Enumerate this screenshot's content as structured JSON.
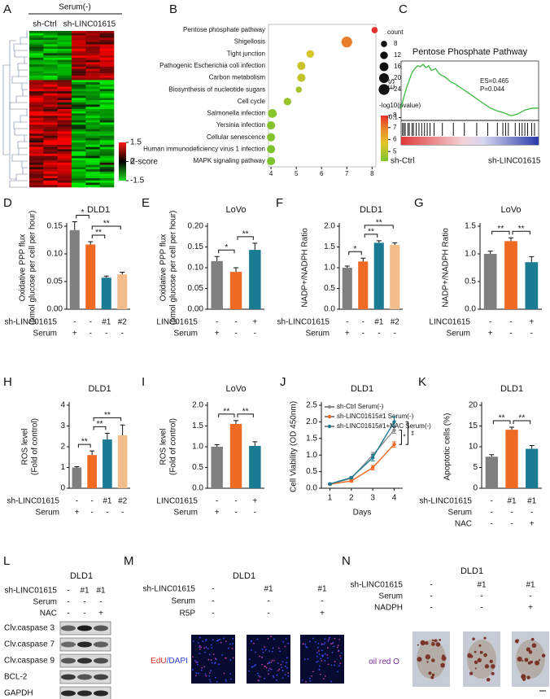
{
  "heatmap": {
    "label": "A",
    "group": "Serum(-)",
    "columns": [
      "sh-Ctrl",
      "sh-LINC01615"
    ],
    "colorbar_ticks": [
      1.5,
      0,
      -1.5
    ],
    "colorbar_label": "Z-score"
  },
  "chart_data": [
    {
      "type": "bubble",
      "label": "B",
      "categories": [
        "Pentose phosphate pathway",
        "Shigellosis",
        "Tight junction",
        "Pathogenic Escherichia coli infection",
        "Carbon metabolism",
        "Biosynthesis of nucleotide sugars",
        "Cell cycle",
        "Salmonella infection",
        "Yersinia infection",
        "Cellular senescence",
        "Human immunodeficiency virus 1 infection",
        "MAPK signaling pathway"
      ],
      "values": [
        8.1,
        7.0,
        5.55,
        5.2,
        5.2,
        5.1,
        4.65,
        4.05,
        4.0,
        4.0,
        4.0,
        4.0
      ],
      "counts": [
        8,
        24,
        12,
        14,
        14,
        8,
        12,
        16,
        14,
        14,
        14,
        14
      ],
      "pvalues": [
        8,
        7,
        5.5,
        5.3,
        5.2,
        4.8,
        4.6,
        4.4,
        4.3,
        4.3,
        4.2,
        4.1
      ],
      "xlim": [
        3.9,
        8.15
      ],
      "xticks": [
        4,
        5,
        6,
        7,
        8
      ],
      "size_title": "count",
      "size_legend": [
        8,
        12,
        16,
        20,
        24
      ],
      "color_title": "-log10(pvalue)",
      "color_lim": [
        4.2,
        8
      ],
      "color_ticks": [
        8,
        7,
        6,
        5
      ]
    },
    {
      "type": "enrichment",
      "label": "C",
      "title": "Pentose Phosphate Pathway",
      "ylabel": "ES",
      "x": [
        0,
        2,
        4,
        6,
        8,
        10,
        12,
        14,
        16,
        18,
        20,
        22,
        25,
        28,
        32,
        36,
        40,
        45,
        50,
        55,
        60,
        65,
        70,
        75,
        80,
        85,
        90,
        95,
        100
      ],
      "values": [
        0,
        0.12,
        0.22,
        0.3,
        0.38,
        0.42,
        0.45,
        0.44,
        0.465,
        0.43,
        0.45,
        0.4,
        0.42,
        0.36,
        0.33,
        0.28,
        0.25,
        0.2,
        0.15,
        0.1,
        0.05,
        0.0,
        -0.03,
        -0.05,
        -0.08,
        -0.06,
        -0.02,
        0.0,
        0.0
      ],
      "xlim": [
        0,
        100
      ],
      "ylim": [
        -0.13,
        0.5
      ],
      "yticks": [
        -0.1
      ],
      "hits": [
        1,
        2,
        3,
        5,
        6,
        8,
        9,
        11,
        13,
        15,
        17,
        19,
        21,
        24,
        30,
        38,
        46,
        55,
        63,
        70,
        74,
        76,
        78,
        83,
        86,
        88,
        90,
        92,
        95,
        97
      ],
      "annotations": [
        "ES=0.465",
        "P=0.044"
      ],
      "groups": [
        "sh-Ctrl",
        "sh-LINC01615"
      ]
    },
    {
      "type": "bar",
      "label": "D",
      "title": "DLD1",
      "ylabel": [
        "Oxidative PPP flux",
        "(pmol glucose per cell per hour)"
      ],
      "values": [
        0.143,
        0.117,
        0.057,
        0.063
      ],
      "errors": [
        0.015,
        0.005,
        0.003,
        0.004
      ],
      "colors": [
        "#808080",
        "#ef6a22",
        "#1b7b93",
        "#f2bd8a"
      ],
      "ylim": [
        0,
        0.15
      ],
      "yticks": [
        {
          "value": 0,
          "label": "0.00"
        },
        {
          "value": 0.05,
          "label": "0.05"
        },
        {
          "value": 0.1,
          "label": "0.10"
        },
        {
          "value": 0.15,
          "label": "0.15"
        }
      ],
      "conditions": [
        {
          "name": "sh-LINC01615",
          "values": [
            "-",
            "-",
            "#1",
            "#2"
          ]
        },
        {
          "name": "Serum",
          "values": [
            "+",
            "-",
            "-",
            "-"
          ]
        }
      ],
      "significance": [
        "*",
        "**",
        "**"
      ]
    },
    {
      "type": "bar",
      "label": "E",
      "title": "LoVo",
      "ylabel": [
        "Oxidative PPP flux",
        "(pmol glucose per cell per hour)"
      ],
      "values": [
        0.116,
        0.09,
        0.143
      ],
      "errors": [
        0.011,
        0.01,
        0.016
      ],
      "colors": [
        "#808080",
        "#ef6a22",
        "#1b7b93"
      ],
      "ylim": [
        0,
        0.2
      ],
      "yticks": [
        {
          "value": 0,
          "label": "0.00"
        },
        {
          "value": 0.05,
          "label": "0.05"
        },
        {
          "value": 0.1,
          "label": "0.10"
        },
        {
          "value": 0.15,
          "label": "0.15"
        },
        {
          "value": 0.2,
          "label": "0.20"
        }
      ],
      "conditions": [
        {
          "name": "LINC01615",
          "values": [
            "-",
            "-",
            "+"
          ]
        },
        {
          "name": "Serum",
          "values": [
            "+",
            "-",
            "-"
          ]
        }
      ],
      "significance": [
        "*",
        "**"
      ]
    },
    {
      "type": "bar",
      "label": "F",
      "title": "DLD1",
      "ylabel": [
        "NADP+/NADPH Ratio"
      ],
      "values": [
        1.0,
        1.15,
        1.6,
        1.55
      ],
      "errors": [
        0.04,
        0.08,
        0.05,
        0.05
      ],
      "colors": [
        "#808080",
        "#ef6a22",
        "#1b7b93",
        "#f2bd8a"
      ],
      "ylim": [
        0,
        2
      ],
      "yticks": [
        {
          "value": 0,
          "label": "0.0"
        },
        0.5,
        {
          "value": 1,
          "label": "1.0"
        },
        1.5,
        {
          "value": 2,
          "label": "2.0"
        }
      ],
      "conditions": [
        {
          "name": "sh-LINC01615",
          "values": [
            "-",
            "-",
            "#1",
            "#2"
          ]
        },
        {
          "name": "Serum",
          "values": [
            "+",
            "-",
            "-",
            "-"
          ]
        }
      ],
      "significance": [
        "*",
        "**",
        "**"
      ]
    },
    {
      "type": "bar",
      "label": "G",
      "title": "LoVo",
      "ylabel": [
        "NADP+/NADPH Ratio"
      ],
      "values": [
        1.0,
        1.23,
        0.85
      ],
      "errors": [
        0.05,
        0.06,
        0.1
      ],
      "colors": [
        "#808080",
        "#ef6a22",
        "#1b7b93"
      ],
      "ylim": [
        0,
        1.5
      ],
      "yticks": [
        {
          "value": 0,
          "label": "0.0"
        },
        0.5,
        {
          "value": 1,
          "label": "1.0"
        },
        1.5
      ],
      "conditions": [
        {
          "name": "LINC01615",
          "values": [
            "-",
            "-",
            "+"
          ]
        },
        {
          "name": "Serum",
          "values": [
            "+",
            "-",
            "-"
          ]
        }
      ],
      "significance": [
        "**",
        "**"
      ]
    },
    {
      "type": "bar",
      "label": "H",
      "title": "DLD1",
      "ylabel": [
        "ROS level",
        "(Fold of control)"
      ],
      "values": [
        1.0,
        1.6,
        2.35,
        2.55
      ],
      "errors": [
        0.04,
        0.2,
        0.3,
        0.5
      ],
      "colors": [
        "#808080",
        "#ef6a22",
        "#1b7b93",
        "#f2bd8a"
      ],
      "ylim": [
        0,
        4
      ],
      "yticks": [
        0,
        1,
        2,
        3,
        4
      ],
      "conditions": [
        {
          "name": "sh-LINC01615",
          "values": [
            "-",
            "-",
            "#1",
            "#2"
          ]
        },
        {
          "name": "Serum",
          "values": [
            "+",
            "-",
            "-",
            "-"
          ]
        }
      ],
      "significance": [
        "**",
        "**",
        "**"
      ]
    },
    {
      "type": "bar",
      "label": "I",
      "title": "LoVo",
      "ylabel": [
        "ROS level",
        "(Fold of control)"
      ],
      "values": [
        1.0,
        1.55,
        1.02
      ],
      "errors": [
        0.05,
        0.08,
        0.1
      ],
      "colors": [
        "#808080",
        "#ef6a22",
        "#1b7b93"
      ],
      "ylim": [
        0,
        2
      ],
      "yticks": [
        {
          "value": 0,
          "label": "0.0"
        },
        0.5,
        {
          "value": 1,
          "label": "1.0"
        },
        1.5,
        {
          "value": 2,
          "label": "2.0"
        }
      ],
      "conditions": [
        {
          "name": "LINC01615",
          "values": [
            "-",
            "-",
            "+"
          ]
        },
        {
          "name": "Serum",
          "values": [
            "+",
            "-",
            "-"
          ]
        }
      ],
      "significance": [
        "**",
        "**"
      ]
    },
    {
      "type": "line",
      "label": "J",
      "title": "DLD1",
      "ylabel": "Cell Viability (OD 450nm)",
      "xlabel": "Days",
      "x": [
        1,
        2,
        3,
        4
      ],
      "xlim": [
        0.6,
        4.4
      ],
      "xticks": [
        1,
        2,
        3,
        4
      ],
      "ylim": [
        0,
        2.5
      ],
      "yticks": [
        {
          "value": 0,
          "label": "0.0"
        },
        0.5,
        {
          "value": 1,
          "label": "1.0"
        },
        1.5,
        {
          "value": 2,
          "label": "2.0"
        },
        2.5
      ],
      "series": [
        {
          "name": "sh-Ctrl Serum(-)",
          "color": "#8c8c8c",
          "values": [
            0.12,
            0.3,
            1.0,
            1.75
          ],
          "errors": [
            0.02,
            0.03,
            0.08,
            0.1
          ]
        },
        {
          "name": "sh-LINC01615#1 Serum(-)",
          "color": "#ef6a22",
          "values": [
            0.12,
            0.22,
            0.62,
            1.32
          ],
          "errors": [
            0.02,
            0.03,
            0.07,
            0.08
          ]
        },
        {
          "name": "sh-LINC01615#1+NAC Serum(-)",
          "color": "#1b7b93",
          "values": [
            0.13,
            0.32,
            0.92,
            2.0
          ],
          "errors": [
            0.02,
            0.03,
            0.1,
            0.15
          ]
        }
      ],
      "significance": [
        "*",
        "**"
      ]
    },
    {
      "type": "bar",
      "label": "K",
      "title": "DLD1",
      "ylabel": [
        "Apoptotic cells (%)"
      ],
      "values": [
        7.6,
        14.1,
        9.5
      ],
      "errors": [
        0.5,
        0.6,
        0.8
      ],
      "colors": [
        "#808080",
        "#ef6a22",
        "#1b7b93"
      ],
      "ylim": [
        0,
        20
      ],
      "yticks": [
        0,
        5,
        10,
        15,
        20
      ],
      "conditions": [
        {
          "name": "sh-LINC01615",
          "values": [
            "-",
            "#1",
            "#1"
          ]
        },
        {
          "name": "Serum",
          "values": [
            "-",
            "-",
            "-"
          ]
        },
        {
          "name": "NAC",
          "values": [
            "-",
            "-",
            "+"
          ]
        }
      ],
      "significance": [
        "**",
        "**"
      ]
    }
  ],
  "blot": {
    "label": "L",
    "title": "DLD1",
    "conditions": [
      {
        "name": "sh-LINC01615",
        "values": [
          "-",
          "#1",
          "#1"
        ]
      },
      {
        "name": "Serum",
        "values": [
          "-",
          "-",
          "-"
        ]
      },
      {
        "name": "NAC",
        "values": [
          "-",
          "-",
          "+"
        ]
      }
    ],
    "bands": [
      "Clv.caspase 3",
      "Clv.caspase 7",
      "Clv.caspase 9",
      "BCL-2",
      "GAPDH"
    ]
  },
  "edu": {
    "label": "M",
    "title": "DLD1",
    "conditions": [
      {
        "name": "sh-LINC01615",
        "values": [
          "-",
          "#1",
          "#1"
        ]
      },
      {
        "name": "Serum",
        "values": [
          "-",
          "-",
          "-"
        ]
      },
      {
        "name": "R5P",
        "values": [
          "-",
          "-",
          "+"
        ]
      }
    ],
    "stain": [
      {
        "text": "EdU",
        "color": "#e0302a"
      },
      {
        "text": "/DAPI",
        "color": "#2a3fd0"
      }
    ]
  },
  "oil": {
    "label": "N",
    "title": "DLD1",
    "conditions": [
      {
        "name": "sh-LINC01615",
        "values": [
          "-",
          "#1",
          "#1"
        ]
      },
      {
        "name": "Serum",
        "values": [
          "-",
          "-",
          "-"
        ]
      },
      {
        "name": "NADPH",
        "values": [
          "-",
          "-",
          "+"
        ]
      }
    ],
    "stain": [
      {
        "text": "oil red O",
        "color": "#7a2a9a"
      }
    ]
  }
}
